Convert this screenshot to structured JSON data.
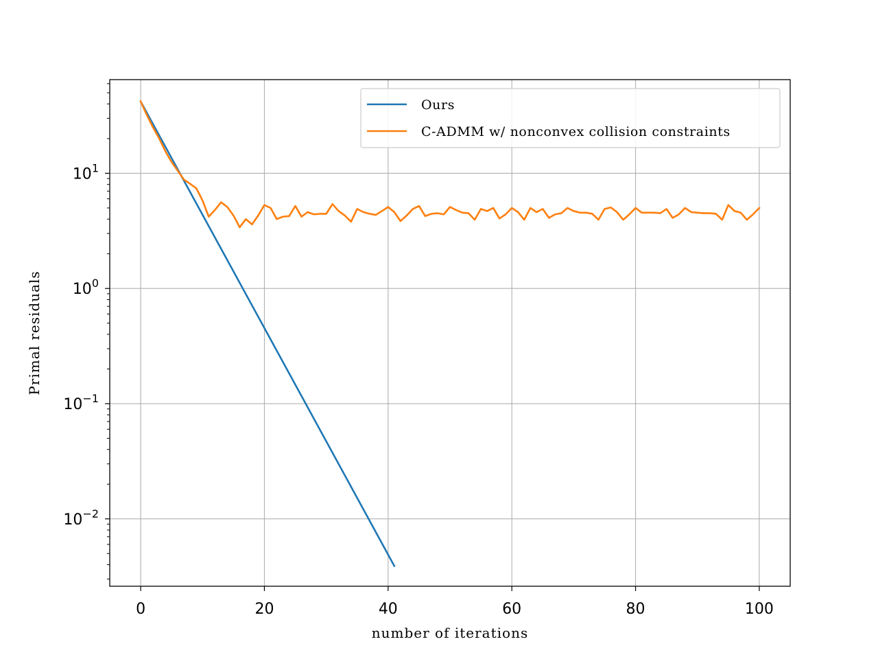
{
  "chart_data": {
    "type": "line",
    "title": "",
    "xlabel": "number of iterations",
    "ylabel": "Primal residuals",
    "xlim": [
      -5,
      105
    ],
    "ylim": [
      0.0026,
      65
    ],
    "yscale": "log",
    "grid": true,
    "legend_position": "top-right",
    "x_ticks": [
      {
        "value": 0,
        "label": "0"
      },
      {
        "value": 20,
        "label": "20"
      },
      {
        "value": 40,
        "label": "40"
      },
      {
        "value": 60,
        "label": "60"
      },
      {
        "value": 80,
        "label": "80"
      },
      {
        "value": 100,
        "label": "100"
      }
    ],
    "y_ticks": [
      {
        "value": 0.01,
        "base": "10",
        "exp": "−2"
      },
      {
        "value": 0.1,
        "base": "10",
        "exp": "−1"
      },
      {
        "value": 1,
        "base": "10",
        "exp": "0"
      },
      {
        "value": 10,
        "base": "10",
        "exp": "1"
      }
    ],
    "series": [
      {
        "name": "Ours",
        "color": "#1f77b4",
        "x": [
          0,
          41
        ],
        "y": [
          42,
          0.0039
        ]
      },
      {
        "name": "C-ADMM w/ nonconvex collision constraints",
        "color": "#ff7f0e",
        "x": [
          0,
          1,
          2,
          3,
          4,
          5,
          6,
          7,
          8,
          9,
          10,
          11,
          12,
          13,
          14,
          15,
          16,
          17,
          18,
          19,
          20,
          21,
          22,
          23,
          24,
          25,
          26,
          27,
          28,
          29,
          30,
          31,
          32,
          33,
          34,
          35,
          36,
          37,
          38,
          39,
          40,
          41,
          42,
          43,
          44,
          45,
          46,
          47,
          48,
          49,
          50,
          51,
          52,
          53,
          54,
          55,
          56,
          57,
          58,
          59,
          60,
          61,
          62,
          63,
          64,
          65,
          66,
          67,
          68,
          69,
          70,
          71,
          72,
          73,
          74,
          75,
          76,
          77,
          78,
          79,
          80,
          81,
          82,
          83,
          84,
          85,
          86,
          87,
          88,
          89,
          90,
          91,
          92,
          93,
          94,
          95,
          96,
          97,
          98,
          99,
          100
        ],
        "y": [
          42,
          32,
          25,
          20,
          15.5,
          12.5,
          10.5,
          8.8,
          8.1,
          7.4,
          5.8,
          4.2,
          4.8,
          5.6,
          5.1,
          4.3,
          3.4,
          4.0,
          3.6,
          4.3,
          5.3,
          5.0,
          4.0,
          4.2,
          4.25,
          5.2,
          4.2,
          4.6,
          4.4,
          4.45,
          4.45,
          5.4,
          4.7,
          4.3,
          3.8,
          4.9,
          4.6,
          4.45,
          4.35,
          4.7,
          5.1,
          4.6,
          3.85,
          4.3,
          4.9,
          5.2,
          4.25,
          4.45,
          4.5,
          4.4,
          5.1,
          4.8,
          4.55,
          4.5,
          3.95,
          4.9,
          4.7,
          5.0,
          4.05,
          4.4,
          5.0,
          4.6,
          3.95,
          5.0,
          4.6,
          4.9,
          4.1,
          4.4,
          4.5,
          5.0,
          4.7,
          4.55,
          4.55,
          4.45,
          3.95,
          4.9,
          5.05,
          4.6,
          3.95,
          4.4,
          5.0,
          4.55,
          4.55,
          4.55,
          4.5,
          4.9,
          4.1,
          4.4,
          5.0,
          4.6,
          4.55,
          4.5,
          4.5,
          4.45,
          3.95,
          5.3,
          4.7,
          4.55,
          3.95,
          4.4,
          5.0
        ]
      }
    ]
  }
}
